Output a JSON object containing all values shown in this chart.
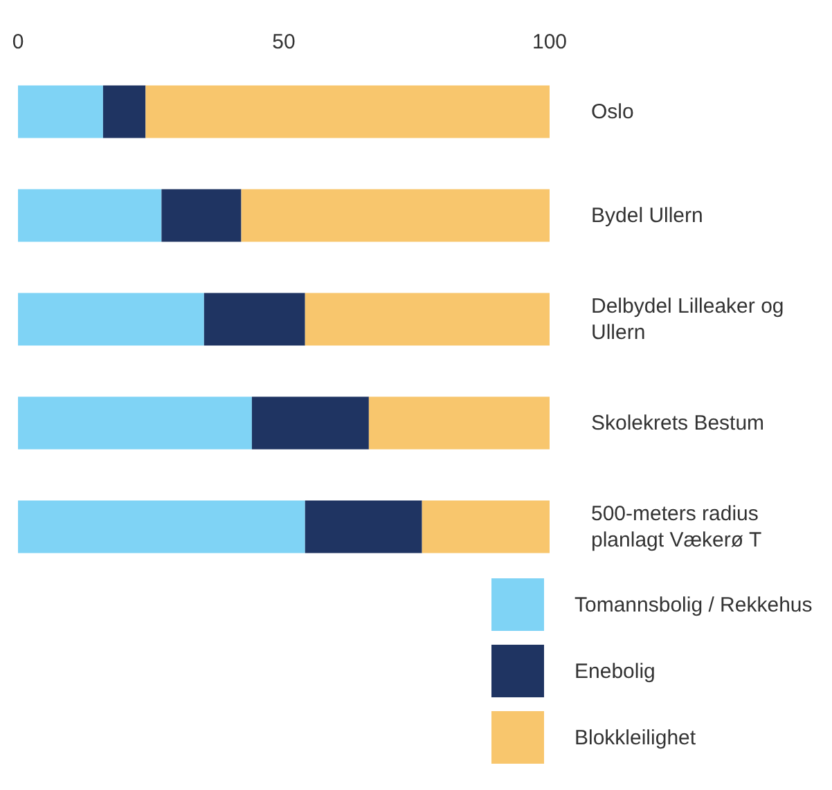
{
  "chart_data": {
    "type": "bar",
    "orientation": "horizontal",
    "stacked": true,
    "categories": [
      "Oslo",
      "Bydel Ullern",
      "Delbydel Lilleaker og Ullern",
      "Skolekrets Bestum",
      "500-meters radius planlagt Vækerø T"
    ],
    "series": [
      {
        "name": "Tomannsbolig / Rekkehus",
        "color": "#7fd3f5",
        "values": [
          16,
          27,
          35,
          44,
          54
        ]
      },
      {
        "name": "Enebolig",
        "color": "#1f3462",
        "values": [
          8,
          15,
          19,
          22,
          22
        ]
      },
      {
        "name": "Blokkleilighet",
        "color": "#f8c66d",
        "values": [
          76,
          58,
          46,
          34,
          24
        ]
      }
    ],
    "xlim": [
      0,
      100
    ],
    "xticks": [
      0,
      50,
      100
    ],
    "legend": "bottom right"
  }
}
